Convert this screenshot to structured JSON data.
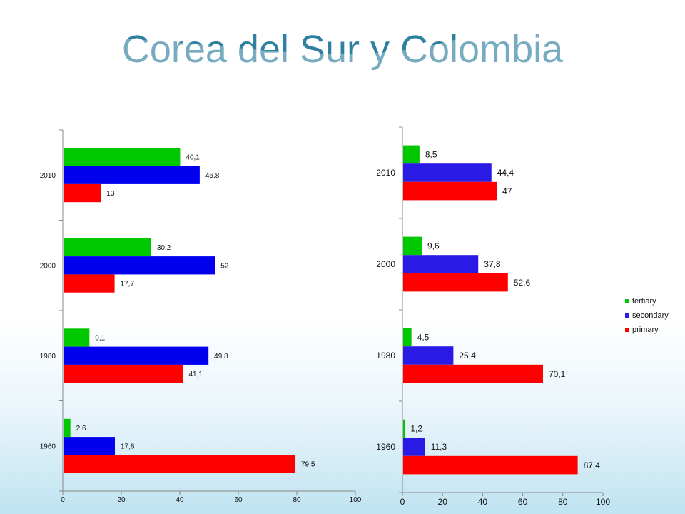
{
  "slide": {
    "title": "Corea del Sur y Colombia"
  },
  "colors": {
    "tertiary": "#00c800",
    "secondary_left": "#0000ee",
    "secondary_right": "#2a1ae6",
    "primary": "#ff0000",
    "title": "#2f7f9e"
  },
  "chart_data": [
    {
      "type": "bar",
      "orientation": "horizontal",
      "categories": [
        "2010",
        "2000",
        "1980",
        "1960"
      ],
      "series": [
        {
          "key": "tertiary",
          "values": [
            40.1,
            30.2,
            9.1,
            2.6
          ],
          "labels": [
            "40,1",
            "30,2",
            "9,1",
            "2,6"
          ]
        },
        {
          "key": "secondary",
          "values": [
            46.8,
            52,
            49.8,
            17.8
          ],
          "labels": [
            "46,8",
            "52",
            "49,8",
            "17,8"
          ]
        },
        {
          "key": "primary",
          "values": [
            13,
            17.7,
            41.1,
            79.5
          ],
          "labels": [
            "13",
            "17,7",
            "41,1",
            "79,5"
          ]
        }
      ],
      "xlim": [
        0,
        100
      ],
      "xticks": [
        "0",
        "20",
        "40",
        "60",
        "80",
        "100"
      ],
      "legend": null
    },
    {
      "type": "bar",
      "orientation": "horizontal",
      "categories": [
        "2010",
        "2000",
        "1980",
        "1960"
      ],
      "series": [
        {
          "key": "tertiary",
          "name": "tertiary",
          "values": [
            8.5,
            9.6,
            4.5,
            1.2
          ],
          "labels": [
            "8,5",
            "9,6",
            "4,5",
            "1,2"
          ]
        },
        {
          "key": "secondary",
          "name": "secondary",
          "values": [
            44.4,
            37.8,
            25.4,
            11.3
          ],
          "labels": [
            "44,4",
            "37,8",
            "25,4",
            "11,3"
          ]
        },
        {
          "key": "primary",
          "name": "primary",
          "values": [
            47,
            52.6,
            70.1,
            87.4
          ],
          "labels": [
            "47",
            "52,6",
            "70,1",
            "87,4"
          ]
        }
      ],
      "xlim": [
        0,
        100
      ],
      "xticks": [
        "0",
        "20",
        "40",
        "60",
        "80",
        "100"
      ],
      "legend": "right"
    }
  ]
}
